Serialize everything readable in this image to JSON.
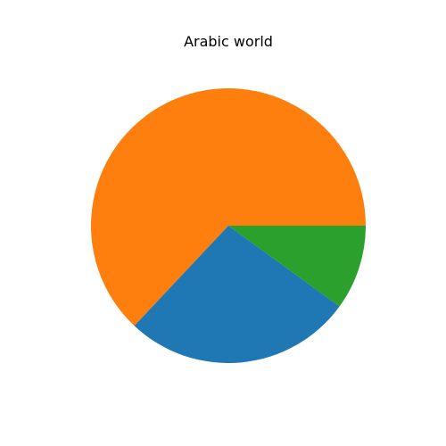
{
  "chart_data": {
    "type": "pie",
    "title": "Arabic world",
    "categories": [
      "",
      "",
      ""
    ],
    "values": [
      63,
      27,
      10
    ],
    "colors": [
      "#ff7f0e",
      "#1f77b4",
      "#2ca02c"
    ],
    "start_angle_deg": 0,
    "direction": "counterclockwise",
    "legend": "none"
  }
}
